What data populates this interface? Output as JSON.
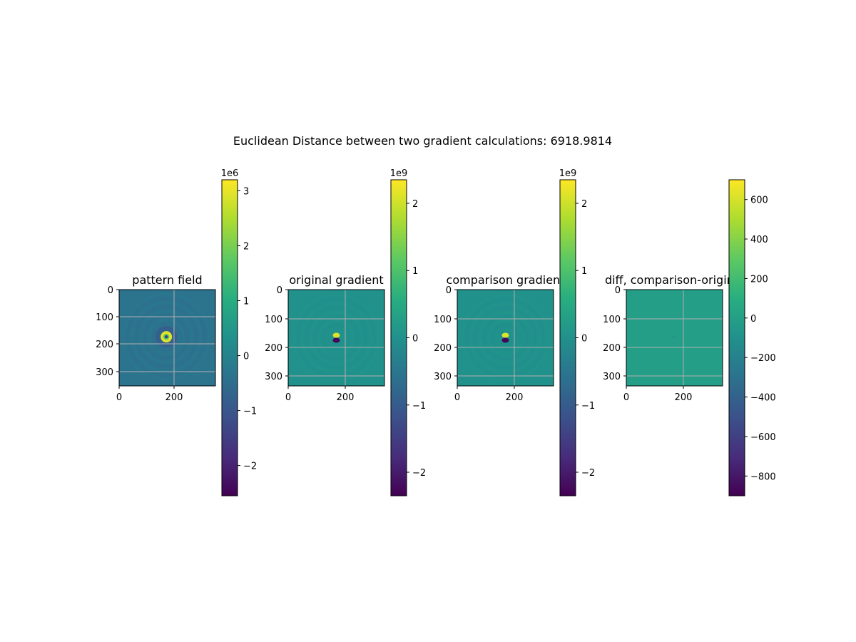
{
  "figure": {
    "suptitle": "Euclidean Distance between two gradient calculations: 6918.9814"
  },
  "chart_data": [
    {
      "type": "heatmap",
      "title": "pattern field",
      "pattern": "ring",
      "colormap": "viridis",
      "grid": true,
      "xticks": [
        "0",
        "200"
      ],
      "yticks": [
        "0",
        "100",
        "200",
        "300"
      ],
      "extent": [
        0,
        350,
        350,
        0
      ],
      "colorbar": {
        "multiplier": "1e6",
        "range": [
          -2.55,
          3.2
        ],
        "ticks": [
          {
            "v": 3,
            "label": "3"
          },
          {
            "v": 2,
            "label": "2"
          },
          {
            "v": 1,
            "label": "1"
          },
          {
            "v": 0,
            "label": "0"
          },
          {
            "v": -1,
            "label": "−1"
          },
          {
            "v": -2,
            "label": "−2"
          }
        ]
      }
    },
    {
      "type": "heatmap",
      "title": "original gradient",
      "pattern": "dipole",
      "colormap": "viridis",
      "grid": true,
      "xticks": [
        "0",
        "200"
      ],
      "yticks": [
        "0",
        "100",
        "200",
        "300"
      ],
      "extent": [
        0,
        335,
        335,
        0
      ],
      "colorbar": {
        "multiplier": "1e9",
        "range": [
          -2.35,
          2.35
        ],
        "ticks": [
          {
            "v": 2,
            "label": "2"
          },
          {
            "v": 1,
            "label": "1"
          },
          {
            "v": 0,
            "label": "0"
          },
          {
            "v": -1,
            "label": "−1"
          },
          {
            "v": -2,
            "label": "−2"
          }
        ]
      }
    },
    {
      "type": "heatmap",
      "title": "comparison gradient",
      "pattern": "dipole",
      "colormap": "viridis",
      "grid": true,
      "xticks": [
        "0",
        "200"
      ],
      "yticks": [
        "0",
        "100",
        "200",
        "300"
      ],
      "extent": [
        0,
        335,
        335,
        0
      ],
      "colorbar": {
        "multiplier": "1e9",
        "range": [
          -2.35,
          2.35
        ],
        "ticks": [
          {
            "v": 2,
            "label": "2"
          },
          {
            "v": 1,
            "label": "1"
          },
          {
            "v": 0,
            "label": "0"
          },
          {
            "v": -1,
            "label": "−1"
          },
          {
            "v": -2,
            "label": "−2"
          }
        ]
      }
    },
    {
      "type": "heatmap",
      "title": "diff, comparison-original",
      "pattern": "flat",
      "colormap": "viridis",
      "grid": true,
      "xticks": [
        "0",
        "200"
      ],
      "yticks": [
        "0",
        "100",
        "200",
        "300"
      ],
      "extent": [
        0,
        335,
        335,
        0
      ],
      "colorbar": {
        "multiplier": "",
        "range": [
          -900,
          700
        ],
        "ticks": [
          {
            "v": 600,
            "label": "600"
          },
          {
            "v": 400,
            "label": "400"
          },
          {
            "v": 200,
            "label": "200"
          },
          {
            "v": 0,
            "label": "0"
          },
          {
            "v": -200,
            "label": "−200"
          },
          {
            "v": -400,
            "label": "−400"
          },
          {
            "v": -600,
            "label": "−600"
          },
          {
            "v": -800,
            "label": "−800"
          }
        ]
      }
    }
  ]
}
